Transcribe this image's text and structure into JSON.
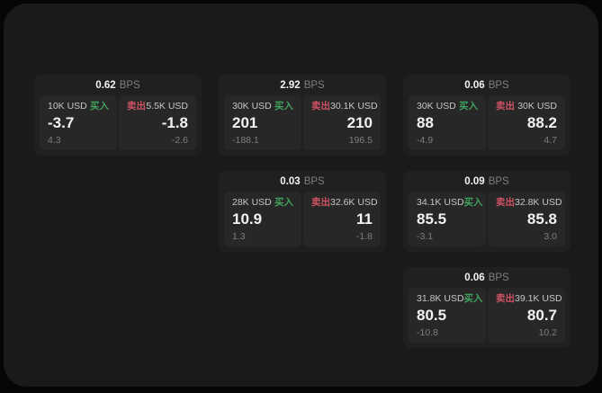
{
  "theme": {
    "page_bg": "#060606",
    "window_bg": "#1a1a1a",
    "card_bg": "#202020",
    "panel_bg": "#272727",
    "buy_color": "#41a25e",
    "sell_color": "#cf5263",
    "value_color": "#f2f2f2",
    "label_color": "#c6c6c6",
    "muted_color": "#7e7e7e"
  },
  "labels": {
    "bps_suffix": "BPS",
    "buy": "买入",
    "sell": "卖出"
  },
  "cards": [
    {
      "row": 1,
      "col": 1,
      "bps": "0.62",
      "buy": {
        "amount": "10K USD",
        "value": "-3.7",
        "sub": "4.3"
      },
      "sell": {
        "amount": "5.5K USD",
        "value": "-1.8",
        "sub": "-2.6"
      }
    },
    {
      "row": 1,
      "col": 2,
      "bps": "2.92",
      "buy": {
        "amount": "30K USD",
        "value": "201",
        "sub": "-188.1"
      },
      "sell": {
        "amount": "30.1K USD",
        "value": "210",
        "sub": "196.5"
      }
    },
    {
      "row": 1,
      "col": 3,
      "bps": "0.06",
      "buy": {
        "amount": "30K USD",
        "value": "88",
        "sub": "-4.9"
      },
      "sell": {
        "amount": "30K USD",
        "value": "88.2",
        "sub": "4.7"
      }
    },
    {
      "row": 2,
      "col": 2,
      "bps": "0.03",
      "buy": {
        "amount": "28K USD",
        "value": "10.9",
        "sub": "1.3"
      },
      "sell": {
        "amount": "32.6K USD",
        "value": "11",
        "sub": "-1.8"
      }
    },
    {
      "row": 2,
      "col": 3,
      "bps": "0.09",
      "buy": {
        "amount": "34.1K USD",
        "value": "85.5",
        "sub": "-3.1"
      },
      "sell": {
        "amount": "32.8K USD",
        "value": "85.8",
        "sub": "3.0"
      }
    },
    {
      "row": 3,
      "col": 3,
      "bps": "0.06",
      "buy": {
        "amount": "31.8K USD",
        "value": "80.5",
        "sub": "-10.8"
      },
      "sell": {
        "amount": "39.1K USD",
        "value": "80.7",
        "sub": "10.2"
      }
    }
  ]
}
